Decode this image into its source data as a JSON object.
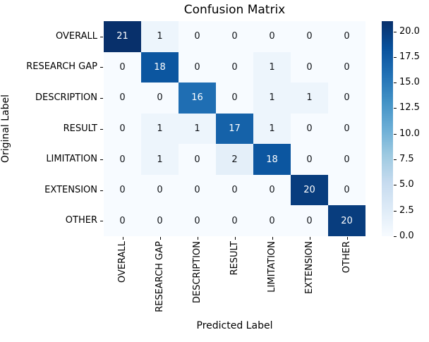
{
  "chart_data": {
    "type": "heatmap",
    "title": "Confusion Matrix",
    "xlabel": "Predicted Label",
    "ylabel": "Original Label",
    "x_categories": [
      "OVERALL",
      "RESEARCH GAP",
      "DESCRIPTION",
      "RESULT",
      "LIMITATION",
      "EXTENSION",
      "OTHER"
    ],
    "y_categories": [
      "OVERALL",
      "RESEARCH GAP",
      "DESCRIPTION",
      "RESULT",
      "LIMITATION",
      "EXTENSION",
      "OTHER"
    ],
    "matrix": [
      [
        21,
        1,
        0,
        0,
        0,
        0,
        0
      ],
      [
        0,
        18,
        0,
        0,
        1,
        0,
        0
      ],
      [
        0,
        0,
        16,
        0,
        1,
        1,
        0
      ],
      [
        0,
        1,
        1,
        17,
        1,
        0,
        0
      ],
      [
        0,
        1,
        0,
        2,
        18,
        0,
        0
      ],
      [
        0,
        0,
        0,
        0,
        0,
        20,
        0
      ],
      [
        0,
        0,
        0,
        0,
        0,
        0,
        20
      ]
    ],
    "vmin": 0,
    "vmax": 21,
    "colormap": "Blues",
    "colorbar_tick_labels": [
      "0.0",
      "2.5",
      "5.0",
      "7.5",
      "10.0",
      "12.5",
      "15.0",
      "17.5",
      "20.0"
    ],
    "colorbar_tick_values": [
      0,
      2.5,
      5,
      7.5,
      10,
      12.5,
      15,
      17.5,
      20
    ],
    "legend_position": "right",
    "grid": false,
    "colors": {
      "cmap_low": "#f7fbff",
      "cmap_high": "#08306b",
      "annot_dark": "#111418",
      "annot_light": "#ffffff",
      "tick_color": "#000000",
      "background": "#ffffff"
    }
  }
}
